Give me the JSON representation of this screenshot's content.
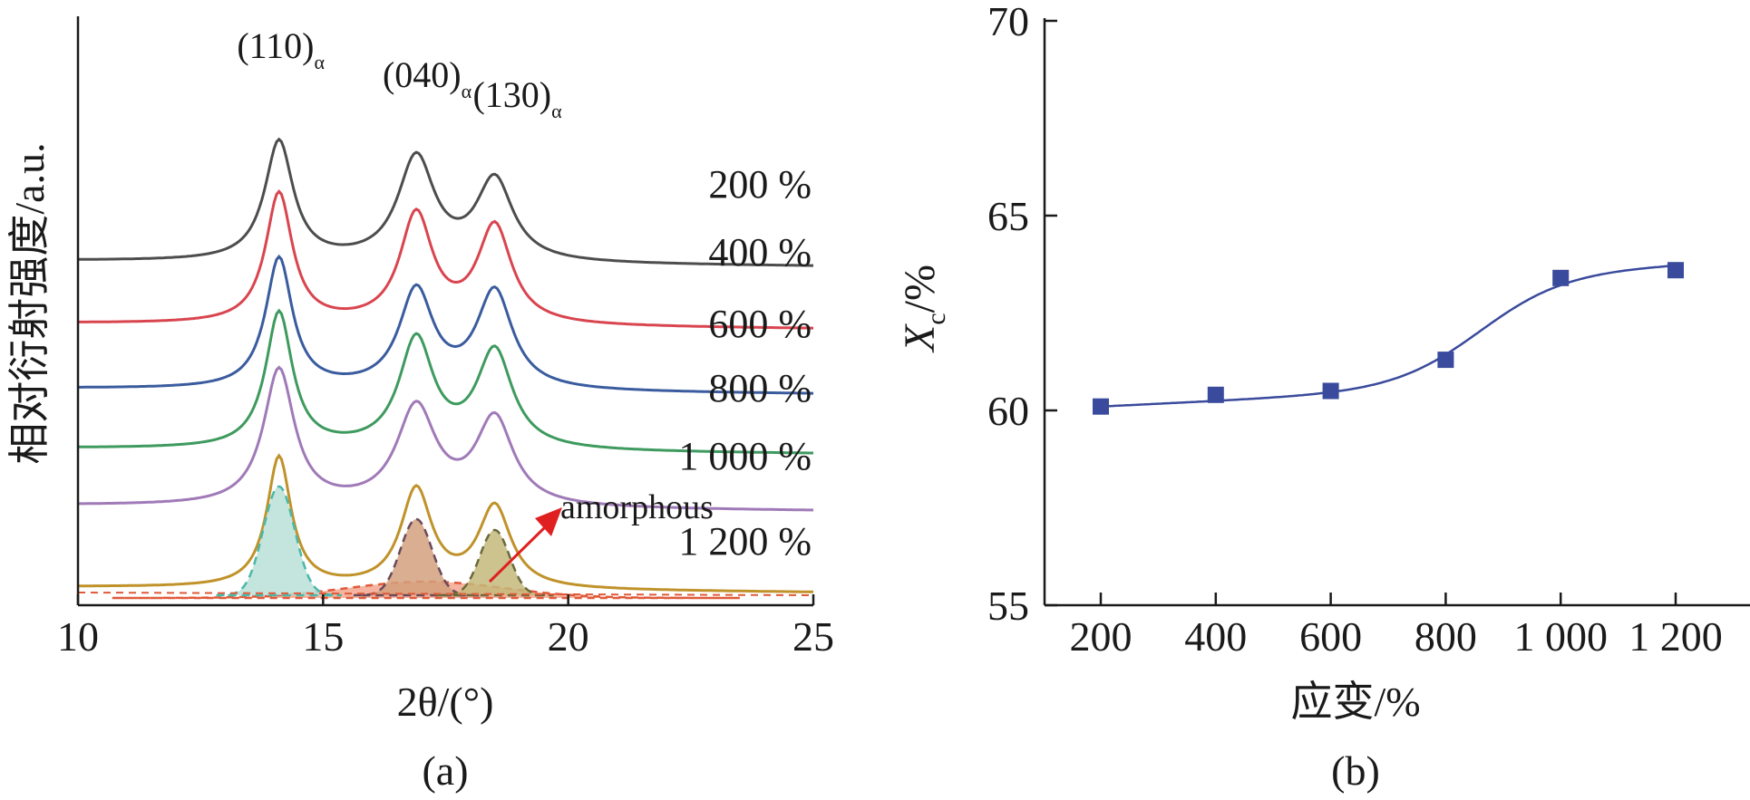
{
  "chart_data": [
    {
      "type": "line",
      "panel_label": "(a)",
      "xlabel": "2θ/(°)",
      "ylabel": "相对衍射强度/a.u.",
      "xlim": [
        10,
        25
      ],
      "xticks": [
        "10",
        "15",
        "20",
        "25"
      ],
      "peaks": [
        {
          "label": "(110)",
          "sub": "α",
          "x": 14.1
        },
        {
          "label": "(040)",
          "sub": "α",
          "x": 16.9
        },
        {
          "label": "(130)",
          "sub": "α",
          "x": 18.5
        }
      ],
      "series": [
        {
          "name": "200 %",
          "color": "#4d4d4d",
          "baseline": 0.62,
          "peak_heights": [
            0.22,
            0.19,
            0.15
          ],
          "widths": [
            0.35,
            0.45,
            0.45
          ],
          "amp": 0.18
        },
        {
          "name": "400 %",
          "color": "#d9454f",
          "baseline": 0.505,
          "peak_heights": [
            0.24,
            0.2,
            0.18
          ],
          "widths": [
            0.33,
            0.4,
            0.42
          ]
        },
        {
          "name": "600 %",
          "color": "#3a5c9e",
          "baseline": 0.385,
          "peak_heights": [
            0.24,
            0.18,
            0.18
          ],
          "widths": [
            0.33,
            0.42,
            0.44
          ]
        },
        {
          "name": "800 %",
          "color": "#3e9a5e",
          "baseline": 0.275,
          "peak_heights": [
            0.25,
            0.2,
            0.18
          ],
          "widths": [
            0.33,
            0.42,
            0.44
          ]
        },
        {
          "name": "1 000 %",
          "color": "#a07ab8",
          "baseline": 0.17,
          "peak_heights": [
            0.25,
            0.18,
            0.16
          ],
          "widths": [
            0.38,
            0.48,
            0.46
          ]
        },
        {
          "name": "1 200 %",
          "color": "#c0922a",
          "baseline": 0.02,
          "peak_heights": [
            0.24,
            0.18,
            0.15
          ],
          "widths": [
            0.3,
            0.38,
            0.4
          ]
        }
      ],
      "deconvolution": [
        {
          "x": 14.1,
          "height": 0.2,
          "width": 0.32,
          "fill": "#b8e0d8",
          "stroke": "#4ab8a8"
        },
        {
          "x": 16.9,
          "height": 0.14,
          "width": 0.32,
          "fill": "#d4a07c",
          "stroke": "#6b4a5a"
        },
        {
          "x": 18.5,
          "height": 0.12,
          "width": 0.3,
          "fill": "#c4b87a",
          "stroke": "#6b6a3a"
        }
      ],
      "amorphous": {
        "label": "amorphous",
        "x": 17.1,
        "height": 0.03,
        "width": 1.6,
        "fill": "#f2a088",
        "stroke": "#e05a3a"
      }
    },
    {
      "type": "scatter",
      "panel_label": "(b)",
      "xlabel": "应变/%",
      "ylabel": "X",
      "ylabel_sub": "c",
      "ylabel_unit": "/%",
      "ylim": [
        55,
        70
      ],
      "yticks": [
        "55",
        "60",
        "65",
        "70"
      ],
      "x": [
        200,
        400,
        600,
        800,
        1000,
        1200
      ],
      "xticks": [
        "200",
        "400",
        "600",
        "800",
        "1 000",
        "1 200"
      ],
      "y": [
        60.1,
        60.4,
        60.5,
        61.3,
        63.4,
        63.6
      ],
      "color": "#3a4a9c"
    }
  ]
}
